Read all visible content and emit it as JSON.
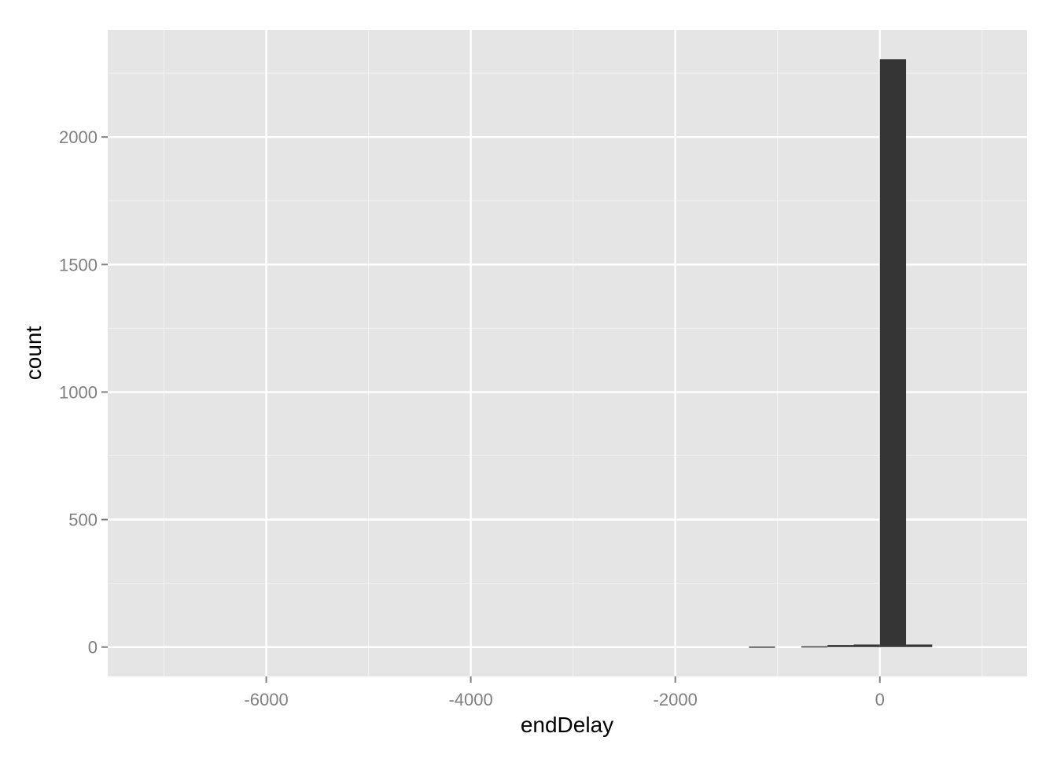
{
  "chart_data": {
    "type": "bar",
    "xlabel": "endDelay",
    "ylabel": "count",
    "xlim": [
      -7550,
      1440
    ],
    "ylim": [
      -115,
      2420
    ],
    "x_ticks": [
      -6000,
      -4000,
      -2000,
      0
    ],
    "x_tick_labels": [
      "-6000",
      "-4000",
      "-2000",
      "0"
    ],
    "x_minor_ticks": [
      -7000,
      -5000,
      -3000,
      -1000,
      1000
    ],
    "y_ticks": [
      0,
      500,
      1000,
      1500,
      2000
    ],
    "y_tick_labels": [
      "0",
      "500",
      "1000",
      "1500",
      "2000"
    ],
    "y_minor_ticks": [
      250,
      750,
      1250,
      1750,
      2250
    ],
    "grid": true,
    "bin_width": 256,
    "bins": [
      {
        "x0": -1280,
        "x1": -1024,
        "count": 2
      },
      {
        "x0": -768,
        "x1": -512,
        "count": 3
      },
      {
        "x0": -512,
        "x1": -256,
        "count": 8
      },
      {
        "x0": -256,
        "x1": 0,
        "count": 10
      },
      {
        "x0": 0,
        "x1": 256,
        "count": 2305
      },
      {
        "x0": 256,
        "x1": 512,
        "count": 10
      }
    ]
  },
  "colors": {
    "panel_background": "#e5e5e5",
    "major_grid": "#ffffff",
    "minor_grid": "#f2f2f2",
    "bar_fill": "#353535",
    "tick_label": "#7f7f7f",
    "axis_title": "#000000"
  }
}
